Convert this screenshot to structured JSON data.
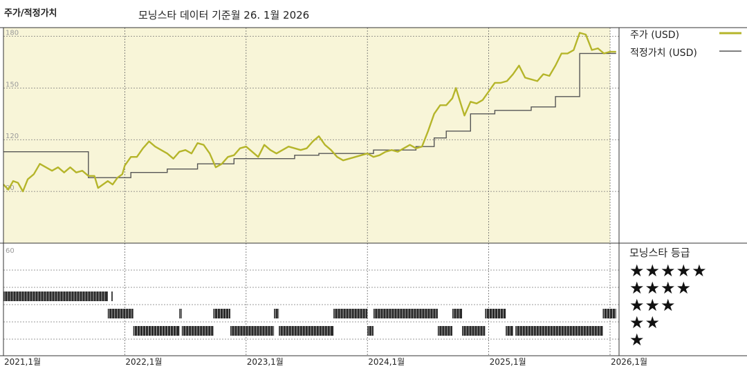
{
  "header": {
    "title": "주가/적정가치",
    "subtitle": "모닝스타 데이터 기준월 26. 1월 2026"
  },
  "legend": {
    "price_label": "주가 (USD)",
    "fair_label": "적정가치 (USD)",
    "price_color": "#b5b52a",
    "fair_color": "#555555"
  },
  "rating_panel": {
    "title": "모닝스타 등급",
    "stars": [
      "★★★★★",
      "★★★★",
      "★★★",
      "★★",
      "★"
    ]
  },
  "chart_data": [
    {
      "type": "line",
      "title": "주가/적정가치",
      "x_axis_labels": [
        "2021,1월",
        "2022,1월",
        "2023,1월",
        "2024,1월",
        "2025,1월",
        "2026,1월"
      ],
      "y_tick_labels": [
        "180",
        "150",
        "120",
        "90"
      ],
      "ylim": [
        60,
        185
      ],
      "xlim": [
        2021.0,
        2026.08
      ],
      "grid": true,
      "legend_position": "right",
      "series": [
        {
          "name": "주가 (USD)",
          "points": [
            [
              2021.0,
              94
            ],
            [
              2021.04,
              91
            ],
            [
              2021.08,
              96
            ],
            [
              2021.12,
              95
            ],
            [
              2021.16,
              90
            ],
            [
              2021.2,
              97
            ],
            [
              2021.25,
              100
            ],
            [
              2021.3,
              106
            ],
            [
              2021.35,
              104
            ],
            [
              2021.4,
              102
            ],
            [
              2021.45,
              104
            ],
            [
              2021.5,
              101
            ],
            [
              2021.55,
              104
            ],
            [
              2021.6,
              101
            ],
            [
              2021.65,
              102
            ],
            [
              2021.7,
              99
            ],
            [
              2021.75,
              99
            ],
            [
              2021.78,
              92
            ],
            [
              2021.82,
              94
            ],
            [
              2021.86,
              96
            ],
            [
              2021.9,
              94
            ],
            [
              2021.94,
              98
            ],
            [
              2021.98,
              100
            ],
            [
              2022.0,
              105
            ],
            [
              2022.05,
              110
            ],
            [
              2022.1,
              110
            ],
            [
              2022.15,
              115
            ],
            [
              2022.2,
              119
            ],
            [
              2022.25,
              116
            ],
            [
              2022.3,
              114
            ],
            [
              2022.35,
              112
            ],
            [
              2022.4,
              109
            ],
            [
              2022.45,
              113
            ],
            [
              2022.5,
              114
            ],
            [
              2022.55,
              112
            ],
            [
              2022.6,
              118
            ],
            [
              2022.65,
              117
            ],
            [
              2022.7,
              112
            ],
            [
              2022.75,
              104
            ],
            [
              2022.8,
              106
            ],
            [
              2022.85,
              110
            ],
            [
              2022.9,
              111
            ],
            [
              2022.95,
              115
            ],
            [
              2023.0,
              116
            ],
            [
              2023.05,
              113
            ],
            [
              2023.1,
              110
            ],
            [
              2023.15,
              117
            ],
            [
              2023.2,
              114
            ],
            [
              2023.25,
              112
            ],
            [
              2023.3,
              114
            ],
            [
              2023.35,
              116
            ],
            [
              2023.4,
              115
            ],
            [
              2023.45,
              114
            ],
            [
              2023.5,
              115
            ],
            [
              2023.55,
              119
            ],
            [
              2023.6,
              122
            ],
            [
              2023.65,
              117
            ],
            [
              2023.7,
              114
            ],
            [
              2023.75,
              110
            ],
            [
              2023.8,
              108
            ],
            [
              2023.85,
              109
            ],
            [
              2023.9,
              110
            ],
            [
              2023.95,
              111
            ],
            [
              2024.0,
              112
            ],
            [
              2024.05,
              110
            ],
            [
              2024.1,
              111
            ],
            [
              2024.15,
              113
            ],
            [
              2024.2,
              114
            ],
            [
              2024.25,
              113
            ],
            [
              2024.3,
              115
            ],
            [
              2024.35,
              117
            ],
            [
              2024.4,
              115
            ],
            [
              2024.45,
              116
            ],
            [
              2024.5,
              125
            ],
            [
              2024.55,
              135
            ],
            [
              2024.6,
              140
            ],
            [
              2024.65,
              140
            ],
            [
              2024.7,
              144
            ],
            [
              2024.73,
              150
            ],
            [
              2024.76,
              143
            ],
            [
              2024.8,
              134
            ],
            [
              2024.85,
              142
            ],
            [
              2024.9,
              141
            ],
            [
              2024.95,
              143
            ],
            [
              2025.0,
              148
            ],
            [
              2025.05,
              153
            ],
            [
              2025.1,
              153
            ],
            [
              2025.15,
              154
            ],
            [
              2025.2,
              158
            ],
            [
              2025.25,
              163
            ],
            [
              2025.3,
              156
            ],
            [
              2025.35,
              155
            ],
            [
              2025.4,
              154
            ],
            [
              2025.45,
              158
            ],
            [
              2025.5,
              157
            ],
            [
              2025.55,
              163
            ],
            [
              2025.6,
              170
            ],
            [
              2025.65,
              170
            ],
            [
              2025.7,
              172
            ],
            [
              2025.75,
              182
            ],
            [
              2025.8,
              181
            ],
            [
              2025.85,
              172
            ],
            [
              2025.9,
              173
            ],
            [
              2025.95,
              170
            ],
            [
              2026.0,
              171
            ],
            [
              2026.05,
              171
            ]
          ]
        },
        {
          "name": "적정가치 (USD)",
          "step": true,
          "points": [
            [
              2021.0,
              113
            ],
            [
              2021.7,
              113
            ],
            [
              2021.7,
              98
            ],
            [
              2022.05,
              98
            ],
            [
              2022.05,
              101
            ],
            [
              2022.35,
              101
            ],
            [
              2022.35,
              103
            ],
            [
              2022.6,
              103
            ],
            [
              2022.6,
              106
            ],
            [
              2022.9,
              106
            ],
            [
              2022.9,
              109
            ],
            [
              2023.4,
              109
            ],
            [
              2023.4,
              111
            ],
            [
              2023.6,
              111
            ],
            [
              2023.6,
              112
            ],
            [
              2024.05,
              112
            ],
            [
              2024.05,
              114
            ],
            [
              2024.4,
              114
            ],
            [
              2024.4,
              116
            ],
            [
              2024.55,
              116
            ],
            [
              2024.55,
              121
            ],
            [
              2024.65,
              121
            ],
            [
              2024.65,
              125
            ],
            [
              2024.85,
              125
            ],
            [
              2024.85,
              135
            ],
            [
              2025.05,
              135
            ],
            [
              2025.05,
              137
            ],
            [
              2025.35,
              137
            ],
            [
              2025.35,
              139
            ],
            [
              2025.55,
              139
            ],
            [
              2025.55,
              145
            ],
            [
              2025.75,
              145
            ],
            [
              2025.75,
              170
            ],
            [
              2026.05,
              170
            ]
          ]
        }
      ]
    },
    {
      "type": "heatmap",
      "title": "모닝스타 등급",
      "y_tick_labels": [
        "60"
      ],
      "x_axis_labels": [
        "2021,1월",
        "2022,1월",
        "2023,1월",
        "2024,1월",
        "2025,1월",
        "2026,1월"
      ],
      "rating_periods": [
        {
          "rating": 4,
          "start": 2021.0,
          "end": 2021.86
        },
        {
          "rating": 4,
          "start": 2021.89,
          "end": 2021.9
        },
        {
          "rating": 3,
          "start": 2021.86,
          "end": 2022.07
        },
        {
          "rating": 2,
          "start": 2022.07,
          "end": 2022.45
        },
        {
          "rating": 3,
          "start": 2022.45,
          "end": 2022.47
        },
        {
          "rating": 2,
          "start": 2022.47,
          "end": 2022.73
        },
        {
          "rating": 3,
          "start": 2022.73,
          "end": 2022.87
        },
        {
          "rating": 2,
          "start": 2022.87,
          "end": 2023.23
        },
        {
          "rating": 3,
          "start": 2023.23,
          "end": 2023.27
        },
        {
          "rating": 2,
          "start": 2023.27,
          "end": 2023.72
        },
        {
          "rating": 3,
          "start": 2023.72,
          "end": 2024.0
        },
        {
          "rating": 2,
          "start": 2024.0,
          "end": 2024.05
        },
        {
          "rating": 3,
          "start": 2024.05,
          "end": 2024.58
        },
        {
          "rating": 2,
          "start": 2024.58,
          "end": 2024.7
        },
        {
          "rating": 3,
          "start": 2024.7,
          "end": 2024.78
        },
        {
          "rating": 2,
          "start": 2024.78,
          "end": 2024.97
        },
        {
          "rating": 3,
          "start": 2024.97,
          "end": 2025.14
        },
        {
          "rating": 2,
          "start": 2025.14,
          "end": 2025.2
        },
        {
          "rating": 2,
          "start": 2025.22,
          "end": 2025.94
        },
        {
          "rating": 3,
          "start": 2025.94,
          "end": 2026.08
        }
      ]
    }
  ]
}
